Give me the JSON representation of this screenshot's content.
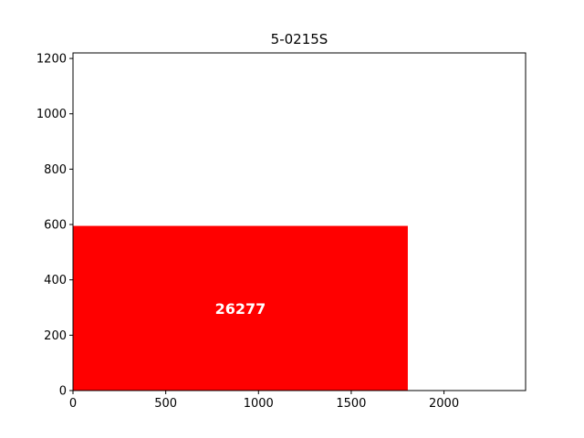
{
  "chart_data": {
    "type": "area",
    "title": "5-0215S",
    "xlabel": "",
    "ylabel": "",
    "xlim": [
      0,
      2440
    ],
    "ylim": [
      0,
      1220
    ],
    "xticks": [
      0,
      500,
      1000,
      1500,
      2000
    ],
    "yticks": [
      0,
      200,
      400,
      600,
      800,
      1000,
      1200
    ],
    "grid": false,
    "rectangles": [
      {
        "label": "26277",
        "x": 0,
        "y": 0,
        "width": 1805,
        "height": 595,
        "color": "#ff0000"
      }
    ]
  }
}
